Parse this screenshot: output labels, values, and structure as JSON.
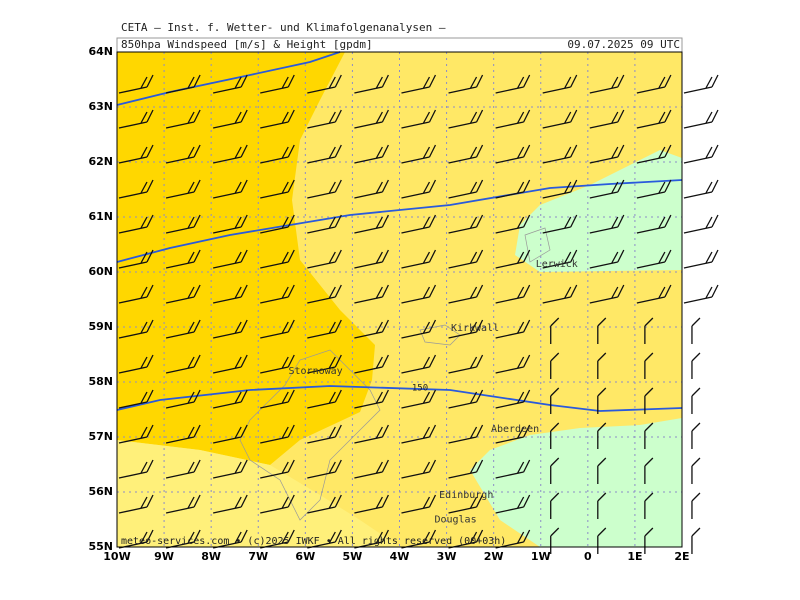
{
  "header": {
    "line1": "CETA – Inst. f. Wetter- und Klimafolgenanalysen –",
    "title": "850hpa Windspeed [m/s] & Height [gpdm]",
    "time": "09.07.2025 09 UTC"
  },
  "map": {
    "lat_range": [
      55,
      64
    ],
    "lon_range": [
      -10,
      2
    ],
    "lat_ticks": [
      {
        "value": 55,
        "label": "55N"
      },
      {
        "value": 56,
        "label": "56N"
      },
      {
        "value": 57,
        "label": "57N"
      },
      {
        "value": 58,
        "label": "58N"
      },
      {
        "value": 59,
        "label": "59N"
      },
      {
        "value": 60,
        "label": "60N"
      },
      {
        "value": 61,
        "label": "61N"
      },
      {
        "value": 62,
        "label": "62N"
      },
      {
        "value": 63,
        "label": "63N"
      },
      {
        "value": 64,
        "label": "64N"
      }
    ],
    "lon_ticks": [
      {
        "value": -10,
        "label": "10W"
      },
      {
        "value": -9,
        "label": "9W"
      },
      {
        "value": -8,
        "label": "8W"
      },
      {
        "value": -7,
        "label": "7W"
      },
      {
        "value": -6,
        "label": "6W"
      },
      {
        "value": -5,
        "label": "5W"
      },
      {
        "value": -4,
        "label": "4W"
      },
      {
        "value": -3,
        "label": "3W"
      },
      {
        "value": -2,
        "label": "2W"
      },
      {
        "value": -1,
        "label": "1W"
      },
      0,
      {
        "value": 1,
        "label": "1E"
      },
      {
        "value": 2,
        "label": "2E"
      }
    ],
    "cities": [
      {
        "name": "Lerwick",
        "lon": -1.15,
        "lat": 60.15
      },
      {
        "name": "Kirkwall",
        "lon": -2.95,
        "lat": 58.98
      },
      {
        "name": "Stornoway",
        "lon": -6.4,
        "lat": 58.2
      },
      {
        "name": "Aberdeen",
        "lon": -2.1,
        "lat": 57.15
      },
      {
        "name": "Edinburgh",
        "lon": -3.2,
        "lat": 55.95
      },
      {
        "name": "Douglas",
        "lon": -3.3,
        "lat": 55.5
      }
    ],
    "contour_label": "150",
    "footer": "meteo-services.com • (c)2025 IWKF • All rights reserved (00+03h)"
  }
}
